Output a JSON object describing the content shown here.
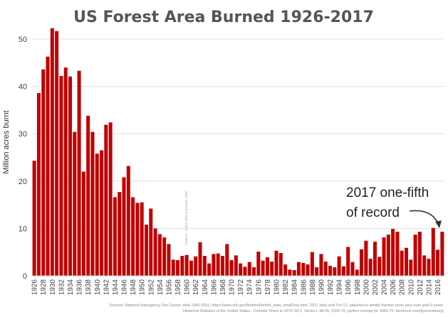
{
  "chart_data": {
    "type": "bar",
    "title": "US Forest Area Burned 1926-2017",
    "ylabel": "Million acres burnt",
    "xlabel": "",
    "ylim": [
      0,
      55
    ],
    "yticks": [
      0,
      10,
      20,
      30,
      40,
      50
    ],
    "bar_color": "#c00000",
    "x_tick_labels": [
      "1926",
      "1928",
      "1930",
      "1932",
      "1934",
      "1936",
      "1938",
      "1940",
      "1942",
      "1944",
      "1946",
      "1948",
      "1950",
      "1952",
      "1954",
      "1956",
      "1958",
      "1960",
      "1962",
      "1964",
      "1966",
      "1968",
      "1970",
      "1972",
      "1974",
      "1976",
      "1978",
      "1980",
      "1982",
      "1984",
      "1986",
      "1988",
      "1990",
      "1992",
      "1994",
      "1996",
      "1998",
      "2000",
      "2002",
      "2004",
      "2006",
      "2008",
      "2010",
      "2012",
      "2014",
      "2016"
    ],
    "years": [
      1926,
      1927,
      1928,
      1929,
      1930,
      1931,
      1932,
      1933,
      1934,
      1935,
      1936,
      1937,
      1938,
      1939,
      1940,
      1941,
      1942,
      1943,
      1944,
      1945,
      1946,
      1947,
      1948,
      1949,
      1950,
      1951,
      1952,
      1953,
      1954,
      1955,
      1956,
      1957,
      1958,
      1959,
      1960,
      1961,
      1962,
      1963,
      1964,
      1965,
      1966,
      1967,
      1968,
      1969,
      1970,
      1971,
      1972,
      1973,
      1974,
      1975,
      1976,
      1977,
      1978,
      1979,
      1980,
      1981,
      1982,
      1983,
      1984,
      1985,
      1986,
      1987,
      1988,
      1989,
      1990,
      1991,
      1992,
      1993,
      1994,
      1995,
      1996,
      1997,
      1998,
      1999,
      2000,
      2001,
      2002,
      2003,
      2004,
      2005,
      2006,
      2007,
      2008,
      2009,
      2010,
      2011,
      2012,
      2013,
      2014,
      2015,
      2016,
      2017
    ],
    "values": [
      24.3,
      38.6,
      43.6,
      46.3,
      52.3,
      51.7,
      42.2,
      44.0,
      42.1,
      30.4,
      43.3,
      22.0,
      33.8,
      30.4,
      25.8,
      26.5,
      31.9,
      32.4,
      16.6,
      17.7,
      20.8,
      23.2,
      16.6,
      15.4,
      15.5,
      10.8,
      14.2,
      10.0,
      8.8,
      8.1,
      6.7,
      3.4,
      3.3,
      4.2,
      4.4,
      3.2,
      4.1,
      7.1,
      4.2,
      2.6,
      4.6,
      4.7,
      4.2,
      6.7,
      3.3,
      4.3,
      2.6,
      1.9,
      2.9,
      1.8,
      5.1,
      3.2,
      3.9,
      3.0,
      5.3,
      4.8,
      2.4,
      1.3,
      1.2,
      2.9,
      2.7,
      2.4,
      5.0,
      1.8,
      4.6,
      3.0,
      2.1,
      1.8,
      4.1,
      2.0,
      6.1,
      2.9,
      1.3,
      5.6,
      7.4,
      3.6,
      7.2,
      4.0,
      8.1,
      8.7,
      9.9,
      9.3,
      5.3,
      5.9,
      3.4,
      8.7,
      9.3,
      4.3,
      3.6,
      10.1,
      5.5,
      9.3
    ],
    "annotation": {
      "line1": "2017 one-fifth",
      "line2": "of record",
      "target_year": 2017
    },
    "vertical_note": "Federal - online data only begin 1960",
    "source_lines": [
      "Sources: National Interagency Fire Center,  data 1960-2016, https://www.nifc.gov/fireinfo/fireInfo_stats_totalFires.html, 2017 data until Oct 13, adjusted to similar fraction burnt area over past 9 years",
      "Historical Statistics of the United States - Colonial Times to 1970 Vol 1, Series L 48-55, 1926-70, perfect overlap for 1960-70. facebook.com/bjornlomborg"
    ]
  }
}
